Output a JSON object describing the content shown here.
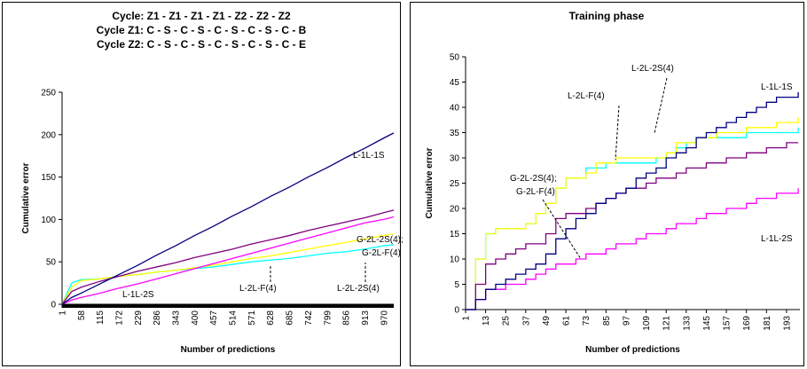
{
  "chart_data": [
    {
      "type": "line",
      "step": false,
      "title": [
        "Cycle: Z1 - Z1 - Z1 - Z1 - Z2 - Z2 - Z2",
        "Cycle Z1: C - S - C - S - C - S - C - S - C - B",
        "Cycle Z2: C - S - C - S - C - S - C - S - C - E"
      ],
      "x_label": "Number of predictions",
      "y_label": "Cumulative error",
      "x": [
        1,
        30,
        58,
        115,
        172,
        229,
        286,
        343,
        400,
        457,
        514,
        571,
        628,
        685,
        742,
        799,
        856,
        913,
        970,
        1000
      ],
      "xlim": [
        1,
        1000
      ],
      "xticks": [
        1,
        58,
        115,
        172,
        229,
        286,
        343,
        400,
        457,
        514,
        571,
        628,
        685,
        742,
        799,
        856,
        913,
        970
      ],
      "ylim": [
        0,
        250
      ],
      "yticks": [
        0,
        50,
        100,
        150,
        200,
        250
      ],
      "series": [
        {
          "color": "#00ffff",
          "values": [
            0,
            25,
            29,
            30,
            33,
            35,
            38,
            40,
            42,
            44,
            47,
            50,
            52,
            54,
            57,
            60,
            62,
            65,
            69,
            70
          ]
        },
        {
          "color": "#ffff00",
          "values": [
            0,
            20,
            28,
            30,
            33,
            35,
            38,
            40,
            43,
            46,
            50,
            54,
            57,
            61,
            65,
            69,
            73,
            77,
            81,
            83
          ]
        },
        {
          "color": "#ff00ff",
          "values": [
            0,
            5,
            8,
            13,
            19,
            24,
            30,
            36,
            42,
            48,
            54,
            60,
            66,
            72,
            78,
            84,
            90,
            96,
            100,
            103
          ]
        },
        {
          "color": "#800080",
          "values": [
            0,
            15,
            20,
            27,
            33,
            39,
            44,
            49,
            55,
            60,
            65,
            71,
            76,
            81,
            87,
            92,
            97,
            102,
            108,
            111
          ]
        },
        {
          "color": "#000080",
          "values": [
            0,
            8,
            13,
            24,
            35,
            46,
            58,
            69,
            81,
            92,
            104,
            115,
            127,
            138,
            150,
            161,
            173,
            184,
            196,
            202
          ]
        }
      ],
      "annotations": [
        "L-1L-1S",
        "G-2L-2S(4);",
        "G-2L-F(4)",
        "L-1L-2S",
        "L-2L-F(4)",
        "L-2L-2S(4)"
      ]
    },
    {
      "type": "line",
      "step": true,
      "title": [
        "Training phase"
      ],
      "x_label": "Number of predictions",
      "y_label": "Cumulative error",
      "x": [
        1,
        7,
        13,
        19,
        25,
        31,
        37,
        43,
        49,
        55,
        61,
        67,
        73,
        79,
        85,
        91,
        97,
        103,
        109,
        115,
        121,
        127,
        133,
        139,
        145,
        151,
        157,
        163,
        169,
        175,
        181,
        187,
        193,
        200
      ],
      "xlim": [
        1,
        201
      ],
      "xticks": [
        1,
        13,
        25,
        37,
        49,
        61,
        73,
        85,
        97,
        109,
        121,
        133,
        145,
        157,
        169,
        181,
        193
      ],
      "ylim": [
        0,
        50
      ],
      "yticks": [
        0,
        5,
        10,
        15,
        20,
        25,
        30,
        35,
        40,
        45,
        50
      ],
      "series": [
        {
          "color": "#00ffff",
          "values": [
            0,
            10,
            15,
            16,
            16,
            16,
            17,
            19,
            21,
            24,
            26,
            26,
            28,
            28,
            29,
            29,
            29,
            29,
            29,
            30,
            31,
            32,
            33,
            34,
            34,
            34,
            34,
            34,
            35,
            35,
            35,
            35,
            35,
            36
          ]
        },
        {
          "color": "#ffff00",
          "values": [
            0,
            10,
            15,
            16,
            16,
            16,
            17,
            19,
            21,
            24,
            26,
            26,
            27,
            29,
            29,
            30,
            30,
            30,
            30,
            30,
            31,
            33,
            33,
            34,
            34,
            35,
            35,
            35,
            36,
            36,
            36,
            37,
            37,
            38
          ]
        },
        {
          "color": "#ff00ff",
          "values": [
            0,
            2,
            4,
            4,
            5,
            5,
            6,
            7,
            8,
            9,
            9,
            10,
            11,
            11,
            12,
            13,
            13,
            14,
            15,
            15,
            16,
            17,
            17,
            18,
            19,
            19,
            20,
            20,
            21,
            22,
            22,
            23,
            23,
            24
          ]
        },
        {
          "color": "#800080",
          "values": [
            0,
            5,
            9,
            10,
            11,
            12,
            13,
            13,
            15,
            18,
            19,
            19,
            20,
            21,
            22,
            23,
            24,
            24,
            25,
            26,
            26,
            27,
            28,
            28,
            29,
            29,
            30,
            30,
            31,
            31,
            32,
            32,
            33,
            33
          ]
        },
        {
          "color": "#000080",
          "values": [
            0,
            2,
            4,
            5,
            6,
            7,
            8,
            9,
            11,
            14,
            16,
            18,
            19,
            21,
            22,
            23,
            24,
            26,
            27,
            28,
            30,
            31,
            32,
            34,
            35,
            36,
            37,
            38,
            39,
            40,
            41,
            42,
            42,
            43
          ]
        }
      ],
      "annotations": [
        "L-2L-2S(4)",
        "L-2L-F(4)",
        "L-1L-1S",
        "G-2L-2S(4);",
        "G-2L-F(4)",
        "L-1L-2S"
      ]
    }
  ]
}
